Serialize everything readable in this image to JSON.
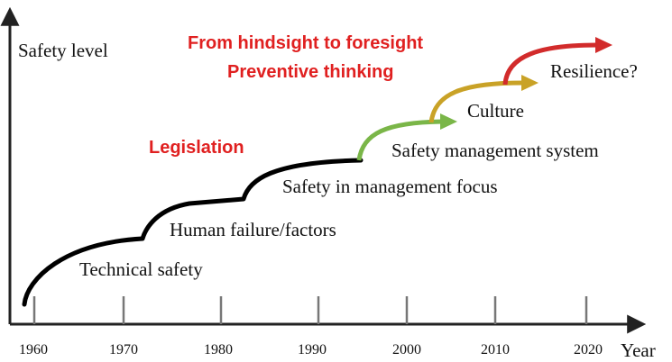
{
  "y_axis_label": "Safety level",
  "x_axis_label": "Year",
  "headline": {
    "line1": "From hindsight to foresight",
    "line2": "Preventive thinking"
  },
  "annotation": "Legislation",
  "stages": {
    "technical": "Technical safety",
    "human": "Human failure/factors",
    "management_focus": "Safety in management focus",
    "sms": "Safety management system",
    "culture": "Culture",
    "resilience": "Resilience?"
  },
  "ticks": [
    "1960",
    "1970",
    "1980",
    "1990",
    "2000",
    "2010",
    "2020"
  ],
  "colors": {
    "axis": "#222222",
    "tick": "#777777",
    "curve": "#000000",
    "sms_arrow": "#7ab648",
    "culture_arrow": "#c9a227",
    "resilience_arrow": "#d22b2b",
    "highlight_text": "#e02020",
    "text": "#111111"
  }
}
